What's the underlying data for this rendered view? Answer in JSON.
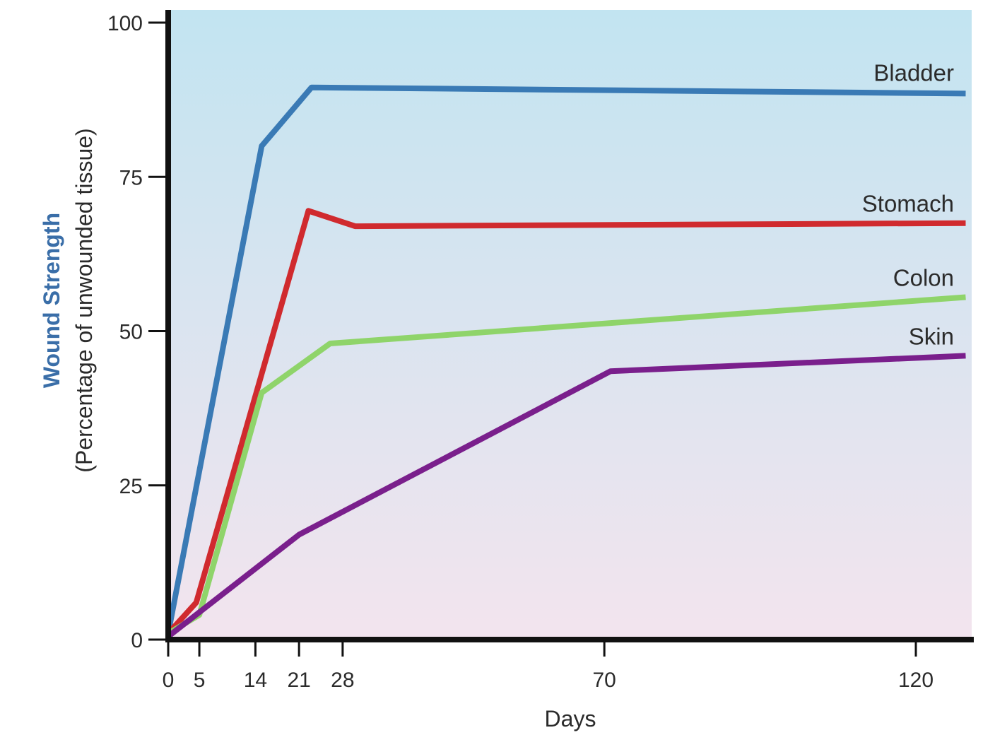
{
  "chart_data": {
    "type": "line",
    "xlabel": "Days",
    "ylabel": "Wound Strength",
    "ylabel_sub": "(Percentage of unwounded tissue)",
    "ylim": [
      0,
      100
    ],
    "xlim": [
      0,
      128
    ],
    "xticks": [
      0,
      5,
      14,
      21,
      28,
      70,
      120
    ],
    "yticks": [
      0,
      25,
      50,
      75,
      100
    ],
    "colors": {
      "ylabel_main": "#3a6ea8",
      "axis": "#111111",
      "background_top": "#c2e4f1",
      "background_bottom": "#f3e4ee"
    },
    "series": [
      {
        "name": "Bladder",
        "color": "#3a7ab5",
        "x": [
          0,
          15,
          23,
          128
        ],
        "y": [
          1,
          80,
          89.5,
          88.5
        ]
      },
      {
        "name": "Stomach",
        "color": "#d02a2e",
        "x": [
          0,
          4.5,
          22.5,
          30,
          128
        ],
        "y": [
          1,
          6,
          69.5,
          67,
          67.5
        ]
      },
      {
        "name": "Colon",
        "color": "#8fd46a",
        "x": [
          0,
          5,
          15,
          26,
          128
        ],
        "y": [
          1,
          4,
          40,
          48,
          55.5
        ]
      },
      {
        "name": "Skin",
        "color": "#7a1f8c",
        "x": [
          0,
          21,
          71,
          128
        ],
        "y": [
          0.5,
          17,
          43.5,
          46
        ]
      }
    ]
  }
}
